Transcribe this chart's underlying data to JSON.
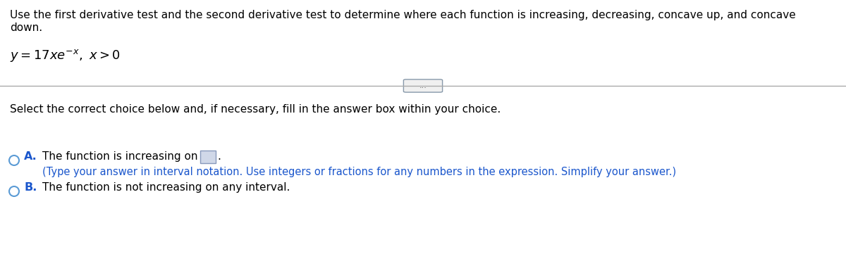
{
  "title_line1": "Use the first derivative test and the second derivative test to determine where each function is increasing, decreasing, concave up, and concave",
  "title_line2": "down.",
  "select_text": "Select the correct choice below and, if necessary, fill in the answer box within your choice.",
  "choice_a_label": "A.",
  "choice_a_text": "The function is increasing on",
  "choice_a_hint": "(Type your answer in interval notation. Use integers or fractions for any numbers in the expression. Simplify your answer.)",
  "choice_b_label": "B.",
  "choice_b_text": "The function is not increasing on any interval.",
  "divider_text": "...",
  "bg_color": "#ffffff",
  "text_color": "#000000",
  "blue_label_color": "#1a56cc",
  "hint_color": "#1a56cc",
  "circle_edge_color": "#5b9bd5",
  "box_fill_color": "#d0d8e8",
  "box_edge_color": "#8899bb",
  "divider_color": "#aaaaaa",
  "btn_fill": "#f0f0f0",
  "btn_edge": "#8899aa"
}
